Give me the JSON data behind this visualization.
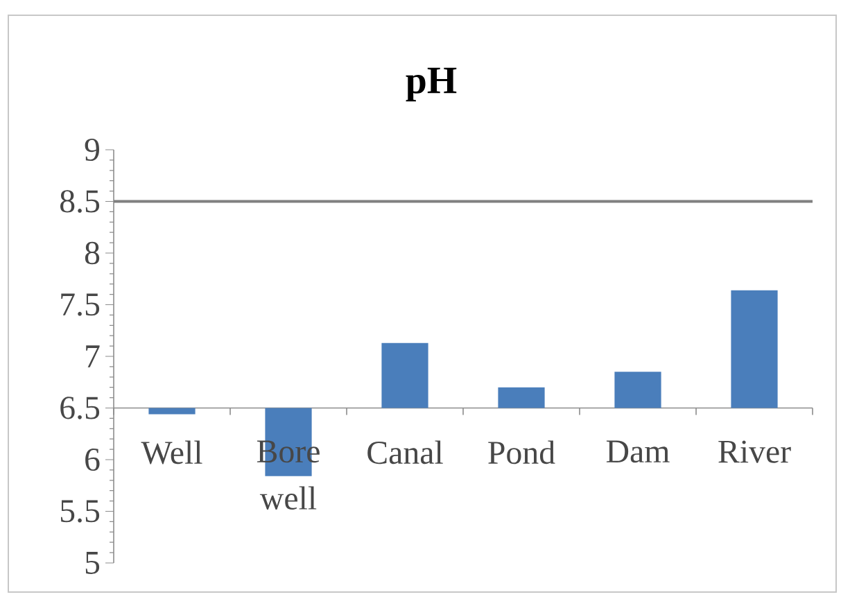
{
  "chart_data": {
    "type": "bar",
    "title": "pH",
    "categories": [
      "Well",
      "Bore well",
      "Canal",
      "Pond",
      "Dam",
      "River"
    ],
    "base": [
      6.5,
      6.5,
      6.5,
      6.5,
      6.5,
      6.5
    ],
    "values": [
      -0.06,
      -0.66,
      0.63,
      0.2,
      0.35,
      1.14
    ],
    "color": "#4a7ebb",
    "ylim": [
      5,
      9
    ],
    "yticks": [
      5,
      5.5,
      6,
      6.5,
      7,
      7.5,
      8,
      8.5,
      9
    ],
    "ref_lines": [
      {
        "axis": "y",
        "value": 8.5,
        "color": "#808080"
      }
    ]
  }
}
